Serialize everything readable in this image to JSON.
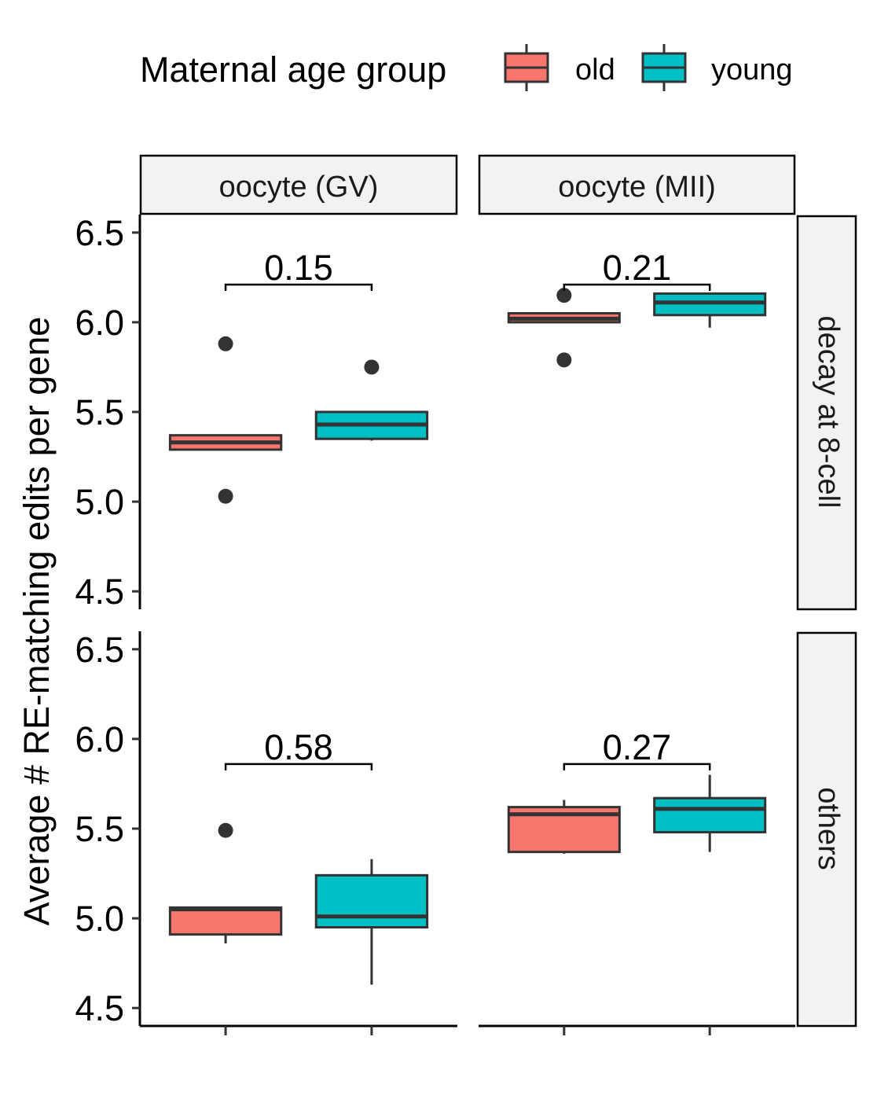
{
  "chart_data": {
    "type": "boxplot",
    "ylabel": "Average # RE-matching edits per gene",
    "ylim": [
      4.4,
      6.6
    ],
    "yticks": [
      "4.5",
      "5.0",
      "5.5",
      "6.0",
      "6.5"
    ],
    "legend": {
      "title": "Maternal age group",
      "position": "top",
      "entries": [
        {
          "name": "old",
          "color": "#F8766D"
        },
        {
          "name": "young",
          "color": "#00BFC4"
        }
      ]
    },
    "columns": [
      "oocyte (GV)",
      "oocyte (MII)"
    ],
    "rows": [
      "decay at 8-cell",
      "others"
    ],
    "panels": [
      {
        "column": "oocyte (GV)",
        "row": "decay at 8-cell",
        "pvalue": "0.15",
        "bracket_y": 6.21,
        "boxes": [
          {
            "group": "old",
            "lower_whisker": 5.29,
            "q1": 5.29,
            "median": 5.33,
            "q3": 5.37,
            "upper_whisker": 5.37,
            "outliers": [
              5.88,
              5.03
            ]
          },
          {
            "group": "young",
            "lower_whisker": 5.34,
            "q1": 5.35,
            "median": 5.43,
            "q3": 5.5,
            "upper_whisker": 5.5,
            "outliers": [
              5.75
            ]
          }
        ]
      },
      {
        "column": "oocyte (MII)",
        "row": "decay at 8-cell",
        "pvalue": "0.21",
        "bracket_y": 6.21,
        "boxes": [
          {
            "group": "old",
            "lower_whisker": 6.0,
            "q1": 6.0,
            "median": 6.02,
            "q3": 6.05,
            "upper_whisker": 6.05,
            "outliers": [
              6.15,
              5.79
            ]
          },
          {
            "group": "young",
            "lower_whisker": 5.97,
            "q1": 6.04,
            "median": 6.11,
            "q3": 6.16,
            "upper_whisker": 6.16,
            "outliers": []
          }
        ]
      },
      {
        "column": "oocyte (GV)",
        "row": "others",
        "pvalue": "0.58",
        "bracket_y": 5.86,
        "boxes": [
          {
            "group": "old",
            "lower_whisker": 4.86,
            "q1": 4.91,
            "median": 5.05,
            "q3": 5.06,
            "upper_whisker": 5.06,
            "outliers": [
              5.49
            ]
          },
          {
            "group": "young",
            "lower_whisker": 4.63,
            "q1": 4.95,
            "median": 5.01,
            "q3": 5.24,
            "upper_whisker": 5.33,
            "outliers": []
          }
        ]
      },
      {
        "column": "oocyte (MII)",
        "row": "others",
        "pvalue": "0.27",
        "bracket_y": 5.86,
        "boxes": [
          {
            "group": "old",
            "lower_whisker": 5.36,
            "q1": 5.37,
            "median": 5.58,
            "q3": 5.62,
            "upper_whisker": 5.66,
            "outliers": []
          },
          {
            "group": "young",
            "lower_whisker": 5.37,
            "q1": 5.48,
            "median": 5.61,
            "q3": 5.67,
            "upper_whisker": 5.8,
            "outliers": []
          }
        ]
      }
    ]
  }
}
